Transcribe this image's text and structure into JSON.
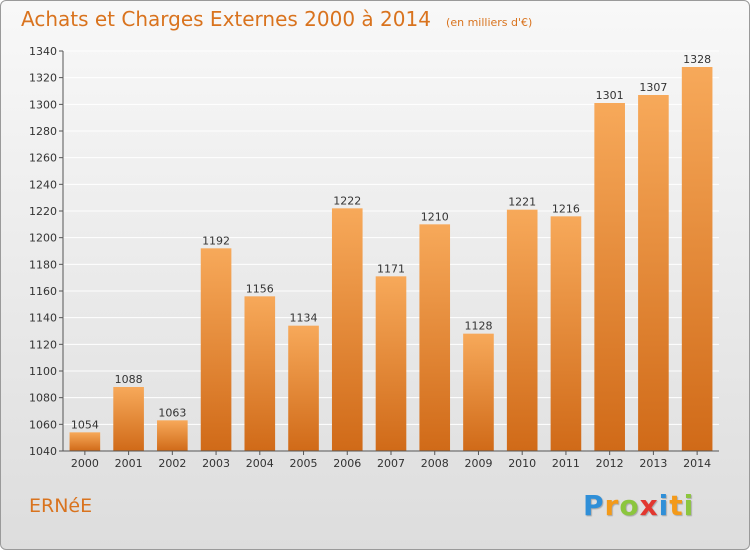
{
  "title": "Achats et Charges Externes 2000 à 2014",
  "subtitle": "(en milliers d'€)",
  "location": "ERNéE",
  "logo": {
    "letters": [
      "P",
      "r",
      "o",
      "x",
      "i",
      "t",
      "i"
    ],
    "colors": [
      "#2f8fd8",
      "#f39a1a",
      "#8cc63e",
      "#e2372f",
      "#2f8fd8",
      "#f39a1a",
      "#8cc63e"
    ]
  },
  "colors": {
    "bar_top": "#f7a95a",
    "bar_bottom": "#d06a18",
    "grid": "#ffffff",
    "axis": "#555555"
  },
  "chart_data": {
    "type": "bar",
    "categories": [
      "2000",
      "2001",
      "2002",
      "2003",
      "2004",
      "2005",
      "2006",
      "2007",
      "2008",
      "2009",
      "2010",
      "2011",
      "2012",
      "2013",
      "2014"
    ],
    "values": [
      1054,
      1088,
      1063,
      1192,
      1156,
      1134,
      1222,
      1171,
      1210,
      1128,
      1221,
      1216,
      1301,
      1307,
      1328
    ],
    "title": "Achats et Charges Externes 2000 à 2014",
    "xlabel": "",
    "ylabel": "",
    "ylim": [
      1040,
      1340
    ],
    "yticks": [
      1040,
      1060,
      1080,
      1100,
      1120,
      1140,
      1160,
      1180,
      1200,
      1220,
      1240,
      1260,
      1280,
      1300,
      1320,
      1340
    ],
    "grid": true,
    "data_labels": true
  }
}
